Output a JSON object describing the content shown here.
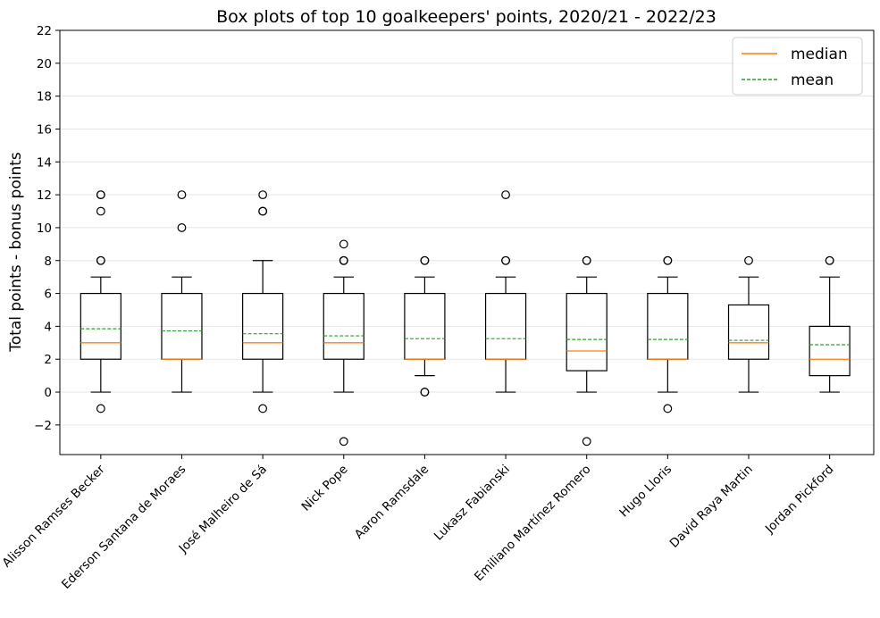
{
  "chart_data": {
    "type": "box",
    "title": "Box plots of top 10 goalkeepers' points, 2020/21 - 2022/23",
    "xlabel": "",
    "ylabel": "Total points - bonus points",
    "ylim": [
      -3.8,
      22
    ],
    "yticks": [
      -2,
      0,
      2,
      4,
      6,
      8,
      10,
      12,
      14,
      16,
      18,
      20,
      22
    ],
    "ytick_labels": [
      "−2",
      "0",
      "2",
      "4",
      "6",
      "8",
      "10",
      "12",
      "14",
      "16",
      "18",
      "20",
      "22"
    ],
    "grid": "horizontal",
    "legend": {
      "placement": "top-right",
      "entries": [
        {
          "label": "median",
          "color": "#ff7f0e",
          "style": "solid"
        },
        {
          "label": "mean",
          "color": "#2ca02c",
          "style": "dashed"
        }
      ]
    },
    "categories": [
      "Alisson Ramses Becker",
      "Ederson Santana de Moraes",
      "José Malheiro de Sá",
      "Nick Pope",
      "Aaron Ramsdale",
      "Lukasz Fabianski",
      "Emiliano Martínez Romero",
      "Hugo Lloris",
      "David Raya Martin",
      "Jordan Pickford"
    ],
    "boxes": [
      {
        "q1": 2,
        "median": 3,
        "q3": 6,
        "whisker_low": 0,
        "whisker_high": 7,
        "mean": 3.85,
        "outliers": [
          -1,
          8,
          8,
          11,
          12,
          12
        ]
      },
      {
        "q1": 2,
        "median": 2,
        "q3": 6,
        "whisker_low": 0,
        "whisker_high": 7,
        "mean": 3.72,
        "outliers": [
          10,
          12
        ]
      },
      {
        "q1": 2,
        "median": 3,
        "q3": 6,
        "whisker_low": 0,
        "whisker_high": 8,
        "mean": 3.55,
        "outliers": [
          -1,
          11,
          11,
          12
        ]
      },
      {
        "q1": 2,
        "median": 3,
        "q3": 6,
        "whisker_low": 0,
        "whisker_high": 7,
        "mean": 3.42,
        "outliers": [
          -3,
          8,
          8,
          8,
          9
        ]
      },
      {
        "q1": 2,
        "median": 2,
        "q3": 6,
        "whisker_low": 1,
        "whisker_high": 7,
        "mean": 3.25,
        "outliers": [
          0,
          0,
          8,
          8
        ]
      },
      {
        "q1": 2,
        "median": 2,
        "q3": 6,
        "whisker_low": 0,
        "whisker_high": 7,
        "mean": 3.25,
        "outliers": [
          8,
          8,
          12
        ]
      },
      {
        "q1": 1.3,
        "median": 2.5,
        "q3": 6,
        "whisker_low": 0,
        "whisker_high": 7,
        "mean": 3.2,
        "outliers": [
          -3,
          8,
          8
        ]
      },
      {
        "q1": 2,
        "median": 2,
        "q3": 6,
        "whisker_low": 0,
        "whisker_high": 7,
        "mean": 3.2,
        "outliers": [
          -1,
          8,
          8
        ]
      },
      {
        "q1": 2,
        "median": 3,
        "q3": 5.3,
        "whisker_low": 0,
        "whisker_high": 7,
        "mean": 3.15,
        "outliers": [
          8
        ]
      },
      {
        "q1": 1,
        "median": 2,
        "q3": 4,
        "whisker_low": 0,
        "whisker_high": 7,
        "mean": 2.88,
        "outliers": [
          8,
          8
        ]
      }
    ]
  }
}
